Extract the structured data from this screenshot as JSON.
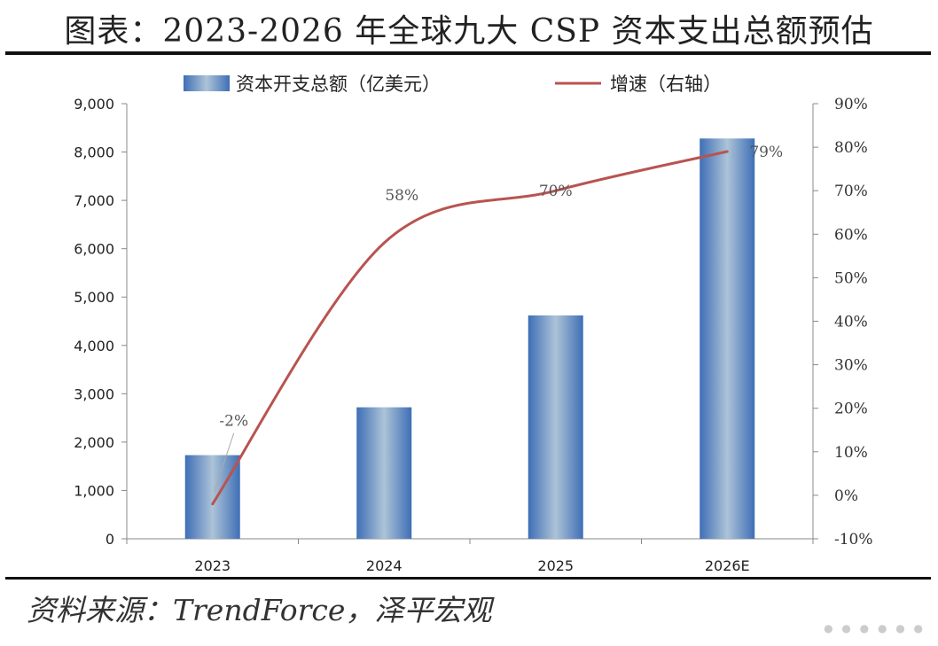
{
  "title": "图表：2023-2026 年全球九大 CSP 资本支出总额预估",
  "source": "资料来源：TrendForce，泽平宏观",
  "colors": {
    "bar": "#4a7fc0",
    "line": "#b85450"
  },
  "chart_data": {
    "type": "bar",
    "categories": [
      "2023",
      "2024",
      "2025",
      "2026E"
    ],
    "series": [
      {
        "name": "资本开支总额（亿美元）",
        "type": "bar",
        "axis": "left",
        "values": [
          1730,
          2720,
          4620,
          8280
        ]
      },
      {
        "name": "增速（右轴）",
        "type": "line",
        "axis": "right",
        "values": [
          -2,
          58,
          70,
          79
        ],
        "data_labels": [
          "-2%",
          "58%",
          "70%",
          "79%"
        ]
      }
    ],
    "ylim_left": [
      0,
      9000
    ],
    "ylim_right": [
      -10,
      90
    ],
    "yticks_left": [
      "0",
      "1,000",
      "2,000",
      "3,000",
      "4,000",
      "5,000",
      "6,000",
      "7,000",
      "8,000",
      "9,000"
    ],
    "yticks_right": [
      "-10%",
      "0%",
      "10%",
      "20%",
      "30%",
      "40%",
      "50%",
      "60%",
      "70%",
      "80%",
      "90%"
    ],
    "legend": "top"
  }
}
